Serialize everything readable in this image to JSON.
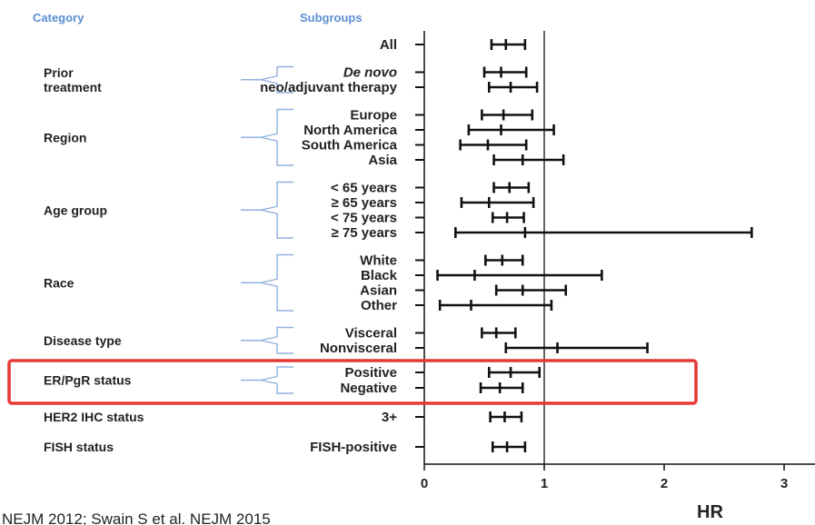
{
  "headers": {
    "category": "Category",
    "subgroups": "Subgroups"
  },
  "footnote": "NEJM 2012; Swain S et al. NEJM 2015",
  "highlight": {
    "category": "ER/PgR status",
    "color": "#e53935"
  },
  "chart_data": {
    "type": "forest",
    "xlabel": "HR",
    "xlim": [
      0,
      3.05
    ],
    "xticks": [
      0,
      1,
      2,
      3
    ],
    "reference_line": 1,
    "groups": [
      {
        "category": "",
        "rows": [
          {
            "label": "All",
            "hr": 0.68,
            "lo": 0.56,
            "hi": 0.84
          }
        ]
      },
      {
        "category": "Prior treatment",
        "category_lines": [
          "Prior",
          "treatment"
        ],
        "rows": [
          {
            "label": "De novo",
            "italic": true,
            "hr": 0.64,
            "lo": 0.5,
            "hi": 0.85
          },
          {
            "label": "neo/adjuvant therapy",
            "hr": 0.72,
            "lo": 0.54,
            "hi": 0.94
          }
        ]
      },
      {
        "category": "Region",
        "rows": [
          {
            "label": "Europe",
            "hr": 0.66,
            "lo": 0.48,
            "hi": 0.9
          },
          {
            "label": "North America",
            "hr": 0.64,
            "lo": 0.37,
            "hi": 1.08
          },
          {
            "label": "South America",
            "hr": 0.53,
            "lo": 0.3,
            "hi": 0.85
          },
          {
            "label": "Asia",
            "hr": 0.82,
            "lo": 0.58,
            "hi": 1.16
          }
        ]
      },
      {
        "category": "Age group",
        "rows": [
          {
            "label": "< 65 years",
            "hr": 0.71,
            "lo": 0.58,
            "hi": 0.87
          },
          {
            "label": "≥ 65 years",
            "hr": 0.54,
            "lo": 0.31,
            "hi": 0.91
          },
          {
            "label": "< 75 years",
            "hr": 0.69,
            "lo": 0.57,
            "hi": 0.83
          },
          {
            "label": "≥ 75 years",
            "hr": 0.84,
            "lo": 0.26,
            "hi": 2.73
          }
        ]
      },
      {
        "category": "Race",
        "rows": [
          {
            "label": "White",
            "hr": 0.65,
            "lo": 0.51,
            "hi": 0.82
          },
          {
            "label": "Black",
            "hr": 0.42,
            "lo": 0.11,
            "hi": 1.48
          },
          {
            "label": "Asian",
            "hr": 0.82,
            "lo": 0.6,
            "hi": 1.18
          },
          {
            "label": "Other",
            "hr": 0.39,
            "lo": 0.13,
            "hi": 1.06
          }
        ]
      },
      {
        "category": "Disease type",
        "rows": [
          {
            "label": "Visceral",
            "hr": 0.6,
            "lo": 0.48,
            "hi": 0.76
          },
          {
            "label": "Nonvisceral",
            "hr": 1.11,
            "lo": 0.68,
            "hi": 1.86
          }
        ]
      },
      {
        "category": "ER/PgR status",
        "rows": [
          {
            "label": "Positive",
            "hr": 0.72,
            "lo": 0.54,
            "hi": 0.96
          },
          {
            "label": "Negative",
            "hr": 0.63,
            "lo": 0.47,
            "hi": 0.82
          }
        ]
      },
      {
        "category": "HER2 IHC status",
        "rows": [
          {
            "label": "3+",
            "hr": 0.67,
            "lo": 0.55,
            "hi": 0.81
          }
        ]
      },
      {
        "category": "FISH status",
        "rows": [
          {
            "label": "FISH-positive",
            "hr": 0.69,
            "lo": 0.57,
            "hi": 0.84
          }
        ]
      }
    ]
  }
}
